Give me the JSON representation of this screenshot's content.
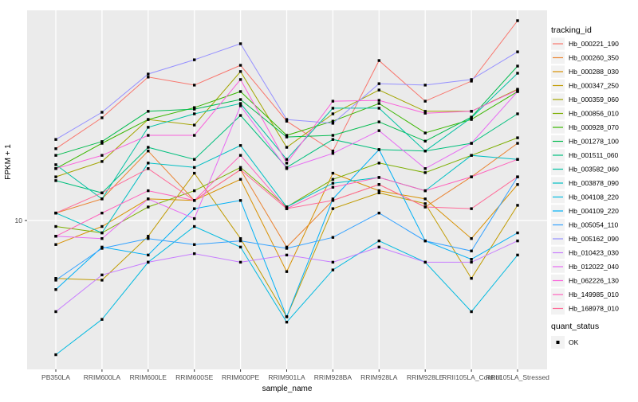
{
  "figure": {
    "background": "#FFFFFF",
    "panel_background": "#EBEBEB",
    "grid_color": "#FFFFFF",
    "tick_text_color": "#4D4D4D",
    "axis_title_color": "#000000",
    "legend_key_fill": "#F2F2F2",
    "marker_color": "#000000"
  },
  "chart_data": {
    "type": "line",
    "xlabel": "sample_name",
    "ylabel": "FPKM + 1",
    "y_scale": "log10",
    "y_ticks": [
      10
    ],
    "y_range_approx": [
      2.3,
      85
    ],
    "grid": "vertical-per-category-plus-y10",
    "legend_title": "tracking_id",
    "legend_position": "right",
    "marker_legend": {
      "title": "quant_status",
      "label": "OK",
      "marker": "black-square"
    },
    "x_categories": [
      "PB350LA",
      "RRIM600LA",
      "RRIM600LE",
      "RRIM600SE",
      "RRIM600PE",
      "RRIM901LA",
      "RRIM928BA",
      "RRIM928LA",
      "RRIM928LE",
      "RRII105LA_Control",
      "RRII105LA_Stressed"
    ],
    "series": [
      {
        "name": "Hb_000221_190",
        "color": "#F8766D",
        "values": [
          21.0,
          28.9,
          44.0,
          40.5,
          49.7,
          27.9,
          20.5,
          52.2,
          34.3,
          42.2,
          78.8
        ]
      },
      {
        "name": "Hb_000260_350",
        "color": "#EA8331",
        "values": [
          10.8,
          12.5,
          20.5,
          12.3,
          16.9,
          7.6,
          12.3,
          14.5,
          11.5,
          15.7,
          22.2
        ]
      },
      {
        "name": "Hb_000288_030",
        "color": "#D89000",
        "values": [
          7.8,
          9.4,
          12.5,
          12.3,
          15.3,
          5.9,
          16.3,
          13.6,
          12.5,
          8.3,
          14.5
        ]
      },
      {
        "name": "Hb_000347_250",
        "color": "#C09B00",
        "values": [
          5.5,
          5.4,
          8.5,
          16.3,
          8.3,
          3.7,
          11.3,
          13.3,
          11.9,
          5.5,
          11.7
        ]
      },
      {
        "name": "Hb_000359_060",
        "color": "#A3A500",
        "values": [
          15.7,
          18.4,
          28.4,
          26.8,
          46.6,
          21.3,
          30.1,
          38.5,
          30.9,
          30.9,
          38.8
        ]
      },
      {
        "name": "Hb_000856_010",
        "color": "#7CAE00",
        "values": [
          9.4,
          8.8,
          11.5,
          13.6,
          17.3,
          11.5,
          15.3,
          18.1,
          16.4,
          19.6,
          23.5
        ]
      },
      {
        "name": "Hb_000928_070",
        "color": "#39B600",
        "values": [
          17.1,
          22.2,
          28.4,
          32.1,
          37.9,
          24.1,
          27.9,
          33.5,
          24.7,
          28.4,
          37.9
        ]
      },
      {
        "name": "Hb_001278_100",
        "color": "#00BB4E",
        "values": [
          19.6,
          22.6,
          30.9,
          31.6,
          34.9,
          23.7,
          24.1,
          27.7,
          22.7,
          29.1,
          49.3
        ]
      },
      {
        "name": "Hb_001511_060",
        "color": "#00BF7D",
        "values": [
          15.1,
          13.3,
          21.3,
          18.8,
          29.6,
          17.3,
          23.1,
          20.8,
          20.5,
          22.2,
          30.1
        ]
      },
      {
        "name": "Hb_003582_060",
        "color": "#00C1A3",
        "values": [
          17.8,
          12.5,
          26.2,
          30.1,
          33.5,
          18.8,
          31.9,
          31.9,
          20.5,
          28.9,
          45.8
        ]
      },
      {
        "name": "Hb_003878_090",
        "color": "#00BFC4",
        "values": [
          10.8,
          8.8,
          18.1,
          17.3,
          21.7,
          11.5,
          14.7,
          15.6,
          13.6,
          19.6,
          18.8
        ]
      },
      {
        "name": "Hb_004108_220",
        "color": "#00BAE0",
        "values": [
          2.5,
          3.6,
          6.5,
          9.4,
          7.6,
          3.5,
          6.0,
          8.1,
          6.5,
          3.9,
          7.0
        ]
      },
      {
        "name": "Hb_004109_220",
        "color": "#00B0F6",
        "values": [
          4.9,
          7.6,
          7.0,
          11.3,
          12.3,
          3.7,
          12.5,
          20.8,
          8.1,
          6.7,
          8.8
        ]
      },
      {
        "name": "Hb_005054_110",
        "color": "#35A2FF",
        "values": [
          5.4,
          7.5,
          8.3,
          7.8,
          8.1,
          7.5,
          8.4,
          10.8,
          8.1,
          7.3,
          15.7
        ]
      },
      {
        "name": "Hb_005162_090",
        "color": "#9590FF",
        "values": [
          23.1,
          30.6,
          45.4,
          52.6,
          62.1,
          28.4,
          27.3,
          41.1,
          40.5,
          42.9,
          57.1
        ]
      },
      {
        "name": "Hb_010423_030",
        "color": "#C77CFF",
        "values": [
          3.9,
          5.7,
          6.5,
          7.1,
          6.5,
          7.0,
          6.5,
          7.6,
          6.5,
          6.5,
          8.1
        ]
      },
      {
        "name": "Hb_012022_040",
        "color": "#E76BF3",
        "values": [
          8.5,
          8.3,
          12.5,
          10.2,
          32.7,
          17.1,
          20.0,
          25.3,
          17.1,
          22.2,
          37.9
        ]
      },
      {
        "name": "Hb_062226_130",
        "color": "#FA62DB",
        "values": [
          17.1,
          19.6,
          24.1,
          24.1,
          42.9,
          18.1,
          34.3,
          34.6,
          30.3,
          30.9,
          38.5
        ]
      },
      {
        "name": "Hb_149985_010",
        "color": "#FF62BC",
        "values": [
          8.5,
          10.8,
          13.6,
          12.3,
          19.6,
          11.3,
          14.1,
          15.6,
          13.6,
          15.7,
          18.8
        ]
      },
      {
        "name": "Hb_168978_010",
        "color": "#FF6A98",
        "values": [
          10.8,
          13.3,
          17.1,
          12.3,
          16.9,
          11.3,
          12.3,
          14.5,
          11.5,
          11.3,
          15.7
        ]
      }
    ]
  }
}
